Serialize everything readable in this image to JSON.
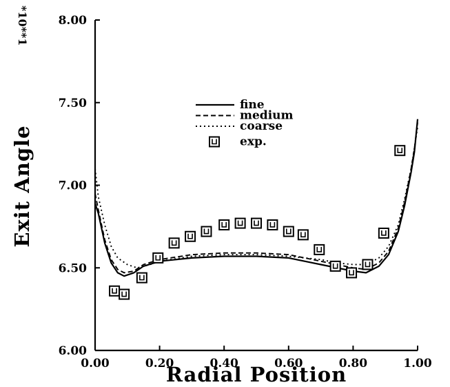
{
  "chart_data": {
    "type": "line",
    "xlabel": "Radial Position",
    "ylabel": "Exit Angle",
    "y_scale_label": "*10**1",
    "xlim": [
      0.0,
      1.0
    ],
    "ylim": [
      6.0,
      8.0
    ],
    "x_ticks": [
      "0.00",
      "0.20",
      "0.40",
      "0.60",
      "0.80",
      "1.00"
    ],
    "y_ticks": [
      "6.00",
      "6.50",
      "7.00",
      "7.50",
      "8.00"
    ],
    "grid": false,
    "legend_position": "center",
    "series": [
      {
        "name": "fine",
        "style": "solid",
        "x": [
          0.0,
          0.01,
          0.03,
          0.05,
          0.07,
          0.09,
          0.12,
          0.15,
          0.2,
          0.3,
          0.4,
          0.5,
          0.6,
          0.7,
          0.75,
          0.8,
          0.84,
          0.88,
          0.91,
          0.94,
          0.96,
          0.98,
          0.99,
          1.0
        ],
        "y": [
          6.89,
          6.83,
          6.65,
          6.53,
          6.47,
          6.45,
          6.47,
          6.51,
          6.54,
          6.56,
          6.57,
          6.57,
          6.56,
          6.52,
          6.5,
          6.48,
          6.47,
          6.51,
          6.58,
          6.72,
          6.88,
          7.08,
          7.2,
          7.4
        ]
      },
      {
        "name": "medium",
        "style": "dashed",
        "x": [
          0.0,
          0.01,
          0.03,
          0.05,
          0.07,
          0.09,
          0.12,
          0.15,
          0.2,
          0.3,
          0.4,
          0.5,
          0.6,
          0.7,
          0.75,
          0.8,
          0.84,
          0.88,
          0.91,
          0.94,
          0.96,
          0.98,
          0.99,
          1.0
        ],
        "y": [
          6.95,
          6.85,
          6.67,
          6.55,
          6.49,
          6.47,
          6.48,
          6.52,
          6.55,
          6.58,
          6.59,
          6.59,
          6.58,
          6.54,
          6.52,
          6.5,
          6.49,
          6.53,
          6.6,
          6.74,
          6.9,
          7.1,
          7.22,
          7.38
        ]
      },
      {
        "name": "coarse",
        "style": "dotted",
        "x": [
          0.0,
          0.01,
          0.03,
          0.05,
          0.07,
          0.1,
          0.13,
          0.17,
          0.2,
          0.3,
          0.4,
          0.5,
          0.6,
          0.7,
          0.75,
          0.8,
          0.84,
          0.88,
          0.91,
          0.94,
          0.96,
          0.98,
          1.0
        ],
        "y": [
          7.1,
          6.93,
          6.76,
          6.63,
          6.56,
          6.52,
          6.5,
          6.52,
          6.54,
          6.57,
          6.58,
          6.58,
          6.57,
          6.55,
          6.53,
          6.52,
          6.52,
          6.56,
          6.63,
          6.76,
          6.92,
          7.1,
          7.35
        ]
      },
      {
        "name": "exp.",
        "style": "marker",
        "x": [
          0.06,
          0.09,
          0.145,
          0.195,
          0.245,
          0.295,
          0.345,
          0.4,
          0.45,
          0.5,
          0.55,
          0.6,
          0.645,
          0.695,
          0.745,
          0.795,
          0.845,
          0.895,
          0.945
        ],
        "y": [
          6.36,
          6.34,
          6.44,
          6.56,
          6.65,
          6.69,
          6.72,
          6.76,
          6.77,
          6.77,
          6.76,
          6.72,
          6.7,
          6.61,
          6.51,
          6.47,
          6.52,
          6.71,
          7.21
        ]
      }
    ]
  }
}
